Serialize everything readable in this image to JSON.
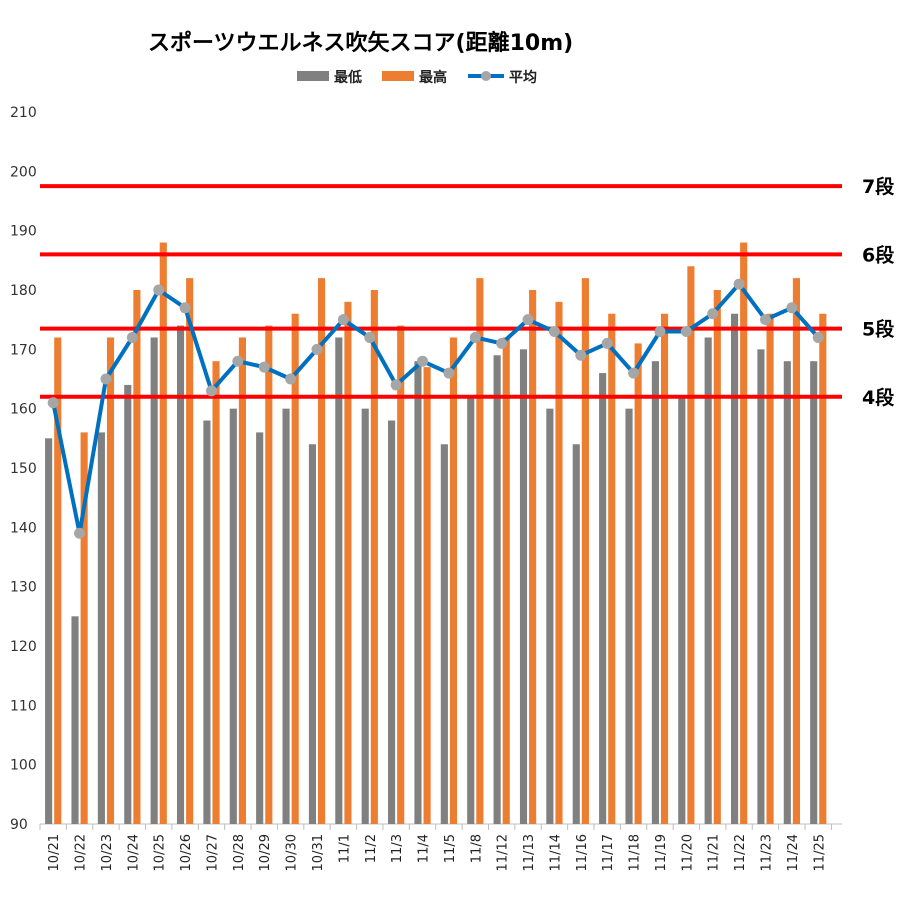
{
  "chart_data": {
    "type": "bar",
    "title": "スポーツウエルネス吹矢スコア(距離10m)",
    "ylim": [
      90,
      210
    ],
    "yticks": [
      90,
      100,
      110,
      120,
      130,
      140,
      150,
      160,
      170,
      180,
      190,
      200,
      210
    ],
    "categories": [
      "10/21",
      "10/22",
      "10/23",
      "10/24",
      "10/25",
      "10/26",
      "10/27",
      "10/28",
      "10/29",
      "10/30",
      "10/31",
      "11/1",
      "11/2",
      "11/3",
      "11/4",
      "11/5",
      "11/8",
      "11/12",
      "11/13",
      "11/14",
      "11/16",
      "11/17",
      "11/18",
      "11/19",
      "11/20",
      "11/21",
      "11/22",
      "11/23",
      "11/24",
      "11/25"
    ],
    "series": [
      {
        "name": "最低",
        "kind": "bar",
        "color": "#808080",
        "values": [
          155,
          125,
          156,
          164,
          172,
          174,
          158,
          160,
          156,
          160,
          154,
          172,
          160,
          158,
          168,
          154,
          162,
          169,
          170,
          160,
          154,
          166,
          160,
          168,
          162,
          172,
          176,
          170,
          168,
          168
        ]
      },
      {
        "name": "最高",
        "kind": "bar",
        "color": "#ED7D31",
        "values": [
          172,
          156,
          172,
          180,
          188,
          182,
          168,
          172,
          174,
          176,
          182,
          178,
          180,
          174,
          167,
          172,
          182,
          172,
          180,
          178,
          182,
          176,
          171,
          176,
          184,
          180,
          188,
          176,
          182,
          176
        ]
      },
      {
        "name": "平均",
        "kind": "line",
        "color": "#0070C0",
        "marker_color": "#A6A6A6",
        "values": [
          161,
          139,
          165,
          172,
          180,
          177,
          163,
          168,
          167,
          165,
          170,
          175,
          172,
          164,
          168,
          166,
          172,
          171,
          175,
          173,
          169,
          171,
          166,
          173,
          173,
          176,
          181,
          175,
          177,
          172
        ]
      }
    ],
    "reference_lines": [
      {
        "label": "7段",
        "value": 197.5,
        "color": "#FF0000"
      },
      {
        "label": "6段",
        "value": 186,
        "color": "#FF0000"
      },
      {
        "label": "5段",
        "value": 173.5,
        "color": "#FF0000"
      },
      {
        "label": "4段",
        "value": 162,
        "color": "#FF0000"
      }
    ],
    "legend": "top-center",
    "grid": false
  }
}
